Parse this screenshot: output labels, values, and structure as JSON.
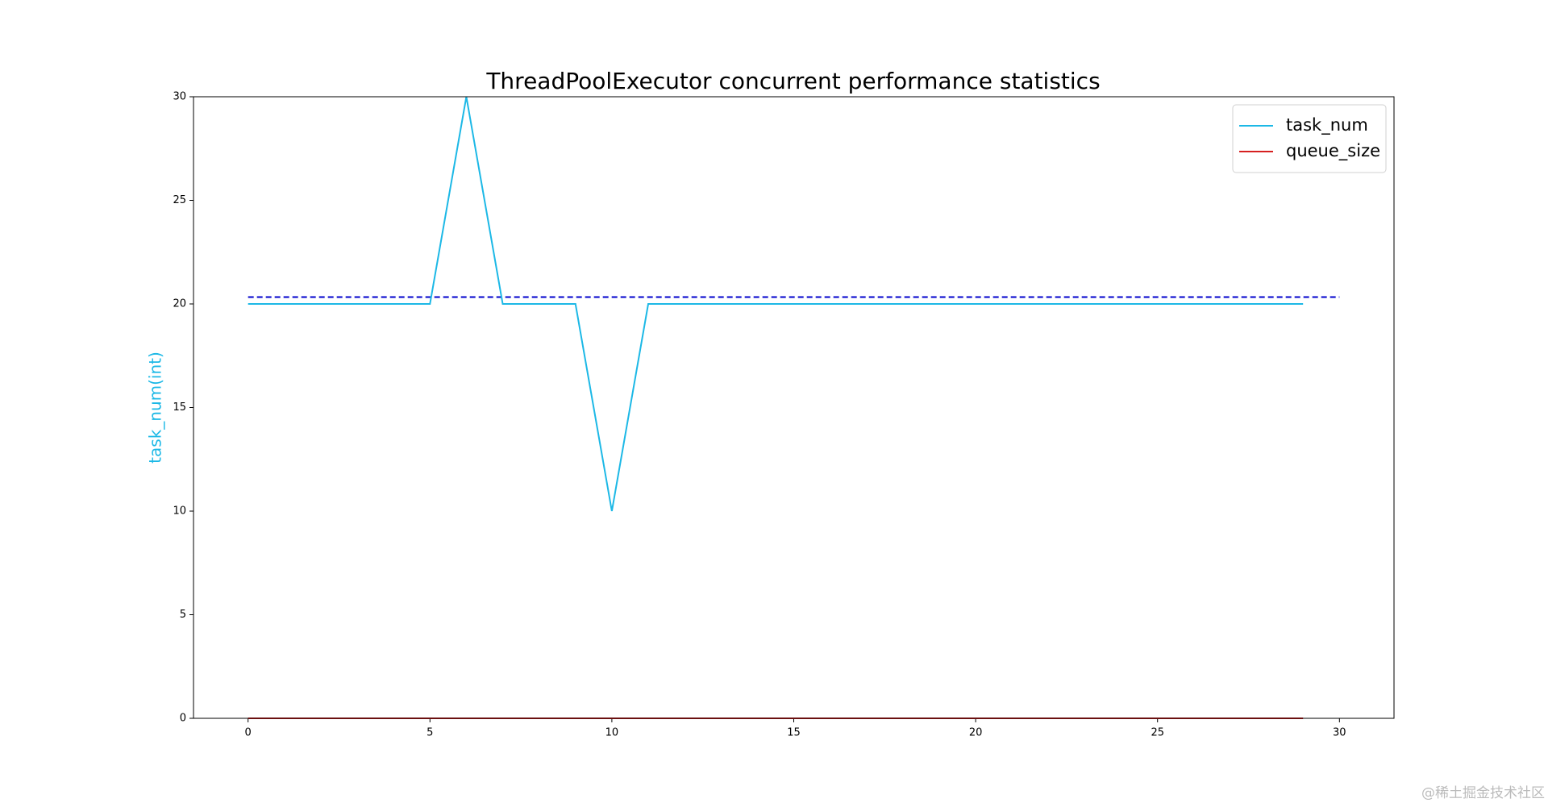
{
  "chart_data": {
    "type": "line",
    "title": "ThreadPoolExecutor concurrent performance statistics",
    "y_label": "task_num(int)",
    "x": [
      0,
      1,
      2,
      3,
      4,
      5,
      6,
      7,
      8,
      9,
      10,
      11,
      12,
      13,
      14,
      15,
      16,
      17,
      18,
      19,
      20,
      21,
      22,
      23,
      24,
      25,
      26,
      27,
      28,
      29
    ],
    "series": [
      {
        "name": "task_num",
        "color": "#1cb8e6",
        "values": [
          20,
          20,
          20,
          20,
          20,
          20,
          30,
          20,
          20,
          20,
          10,
          20,
          20,
          20,
          20,
          20,
          20,
          20,
          20,
          20,
          20,
          20,
          20,
          20,
          20,
          20,
          20,
          20,
          20,
          20
        ]
      },
      {
        "name": "queue_size",
        "color": "#d62020",
        "values": [
          0,
          0,
          0,
          0,
          0,
          0,
          0,
          0,
          0,
          0,
          0,
          0,
          0,
          0,
          0,
          0,
          0,
          0,
          0,
          0,
          0,
          0,
          0,
          0,
          0,
          0,
          0,
          0,
          0,
          0
        ]
      }
    ],
    "reference_line": {
      "x": [
        0,
        30
      ],
      "values": [
        20.33,
        20.33
      ],
      "color": "#0000cc",
      "dashed": true
    },
    "xlim": [
      -1.5,
      31.5
    ],
    "xticks": [
      0,
      5,
      10,
      15,
      20,
      25,
      30
    ],
    "ylim": [
      0,
      30
    ],
    "yticks": [
      0,
      5,
      10,
      15,
      20,
      25,
      30
    ],
    "legend": "upper right",
    "y_label_color": "#1cb8e6"
  },
  "watermark": "@稀土掘金技术社区"
}
